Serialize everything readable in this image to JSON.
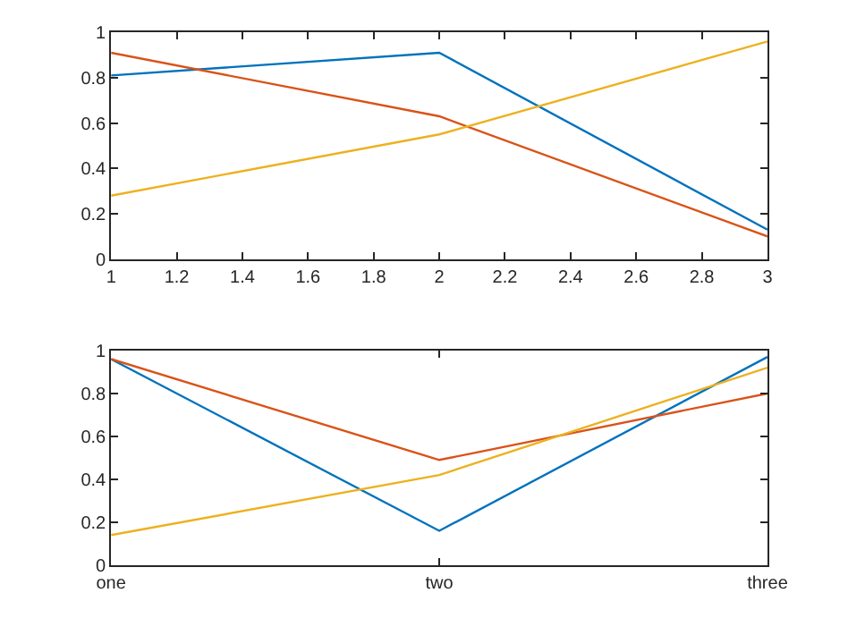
{
  "chart_data": [
    {
      "type": "line",
      "x": [
        1,
        2,
        3
      ],
      "xlim": [
        1,
        3
      ],
      "xticks": [
        1,
        1.2,
        1.4,
        1.6,
        1.8,
        2,
        2.2,
        2.4,
        2.6,
        2.8,
        3
      ],
      "ylim": [
        0,
        1
      ],
      "yticks": [
        0,
        0.2,
        0.4,
        0.6,
        0.8,
        1
      ],
      "series": [
        {
          "color": "#0072bd",
          "values": [
            0.81,
            0.91,
            0.13
          ]
        },
        {
          "color": "#d95319",
          "values": [
            0.91,
            0.63,
            0.1
          ]
        },
        {
          "color": "#edb120",
          "values": [
            0.28,
            0.55,
            0.96
          ]
        }
      ]
    },
    {
      "type": "line",
      "categories": [
        "one",
        "two",
        "three"
      ],
      "ylim": [
        0,
        1
      ],
      "yticks": [
        0,
        0.2,
        0.4,
        0.6,
        0.8,
        1
      ],
      "series": [
        {
          "color": "#0072bd",
          "values": [
            0.96,
            0.16,
            0.97
          ]
        },
        {
          "color": "#d95319",
          "values": [
            0.96,
            0.49,
            0.8
          ]
        },
        {
          "color": "#edb120",
          "values": [
            0.14,
            0.42,
            0.92
          ]
        }
      ]
    }
  ]
}
